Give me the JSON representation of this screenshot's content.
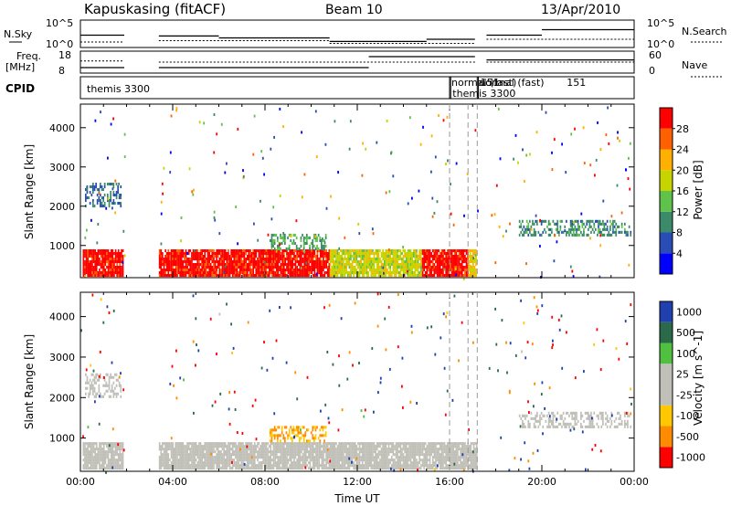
{
  "header": {
    "radar": "Kapuskasing (fitACF)",
    "beam": "Beam 10",
    "date": "13/Apr/2010"
  },
  "top_panels": {
    "nsky_label": "N.Sky",
    "nsky_ticks": [
      "10^5",
      "10^0"
    ],
    "nsearch_label": "N.Search",
    "nsearch_ticks": [
      "10^5",
      "10^0"
    ],
    "freq_label": "Freq.",
    "freq_unit": "[MHz]",
    "freq_ticks": [
      "18",
      "8"
    ],
    "nave_label": "Nave",
    "nave_ticks": [
      "60",
      "0"
    ],
    "cpid_label": "CPID",
    "cpid_entries": [
      {
        "label": "themis 3300",
        "start": 0.2
      },
      {
        "label": "normal (fast)",
        "start": 16.0
      },
      {
        "label": "themis 3300",
        "start": 16.05
      },
      {
        "label": "normal (fast)",
        "start": 17.2
      },
      {
        "label": "151",
        "start": 17.25
      },
      {
        "label": "151",
        "start": 21.0
      }
    ]
  },
  "colors": {
    "power_scale": [
      "#0000ff",
      "#2a4db5",
      "#3b8a6a",
      "#5fc24a",
      "#c8d400",
      "#ffb000",
      "#ff6000",
      "#ff0000"
    ],
    "velocity_scale": [
      "#ff0000",
      "#ff8c00",
      "#ffc800",
      "#c0c0b8",
      "#c0c0b8",
      "#50c040",
      "#2a6a4a",
      "#2040b0"
    ],
    "ground_scatter": "#c0c0b8"
  },
  "chart_data": [
    {
      "type": "heatmap",
      "panel": "power",
      "xlabel": "",
      "ylabel": "Slant Range [km]",
      "xlim": [
        0,
        24
      ],
      "ylim": [
        180,
        4600
      ],
      "y_ticks": [
        1000,
        2000,
        3000,
        4000
      ],
      "colorbar": {
        "label": "Power [dB]",
        "range": [
          0,
          32
        ],
        "ticks": [
          4,
          8,
          12,
          16,
          20,
          24,
          28
        ]
      },
      "regions": [
        {
          "t_start": 0.1,
          "t_end": 1.9,
          "r_start": 200,
          "r_end": 900,
          "value": 30
        },
        {
          "t_start": 3.4,
          "t_end": 10.8,
          "r_start": 200,
          "r_end": 900,
          "value": 30
        },
        {
          "t_start": 10.8,
          "t_end": 14.8,
          "r_start": 200,
          "r_end": 900,
          "value": 18
        },
        {
          "t_start": 14.8,
          "t_end": 16.8,
          "r_start": 200,
          "r_end": 900,
          "value": 30
        },
        {
          "t_start": 16.8,
          "t_end": 17.2,
          "r_start": 200,
          "r_end": 900,
          "value": 20
        },
        {
          "t_start": 0.2,
          "t_end": 1.8,
          "r_start": 2000,
          "r_end": 2600,
          "value": 8
        },
        {
          "t_start": 19.0,
          "t_end": 23.9,
          "r_start": 1250,
          "r_end": 1650,
          "value": 10
        },
        {
          "t_start": 8.2,
          "t_end": 10.7,
          "r_start": 900,
          "r_end": 1300,
          "value": 12
        }
      ]
    },
    {
      "type": "heatmap",
      "panel": "velocity",
      "xlabel": "Time UT",
      "ylabel": "Slant Range [km]",
      "xlim": [
        0,
        24
      ],
      "ylim": [
        180,
        4600
      ],
      "x_ticks": [
        "00:00",
        "04:00",
        "08:00",
        "12:00",
        "16:00",
        "20:00",
        "00:00"
      ],
      "y_ticks": [
        1000,
        2000,
        3000,
        4000
      ],
      "colorbar": {
        "label": "Velocity [m s^-1]",
        "ticks": [
          "-1000",
          "-500",
          "-100",
          "-25",
          "25",
          "100",
          "500",
          "1000"
        ]
      },
      "regions": [
        {
          "t_start": 0.1,
          "t_end": 1.9,
          "r_start": 200,
          "r_end": 900,
          "value": 0
        },
        {
          "t_start": 3.4,
          "t_end": 10.8,
          "r_start": 200,
          "r_end": 900,
          "value": 0
        },
        {
          "t_start": 10.8,
          "t_end": 14.8,
          "r_start": 200,
          "r_end": 900,
          "value": 0
        },
        {
          "t_start": 14.8,
          "t_end": 17.2,
          "r_start": 200,
          "r_end": 900,
          "value": 0
        },
        {
          "t_start": 0.2,
          "t_end": 1.8,
          "r_start": 2000,
          "r_end": 2600,
          "value": 0
        },
        {
          "t_start": 19.0,
          "t_end": 23.9,
          "r_start": 1250,
          "r_end": 1650,
          "value": 0
        },
        {
          "t_start": 8.2,
          "t_end": 10.7,
          "r_start": 900,
          "r_end": 1300,
          "value": -100
        }
      ]
    }
  ]
}
